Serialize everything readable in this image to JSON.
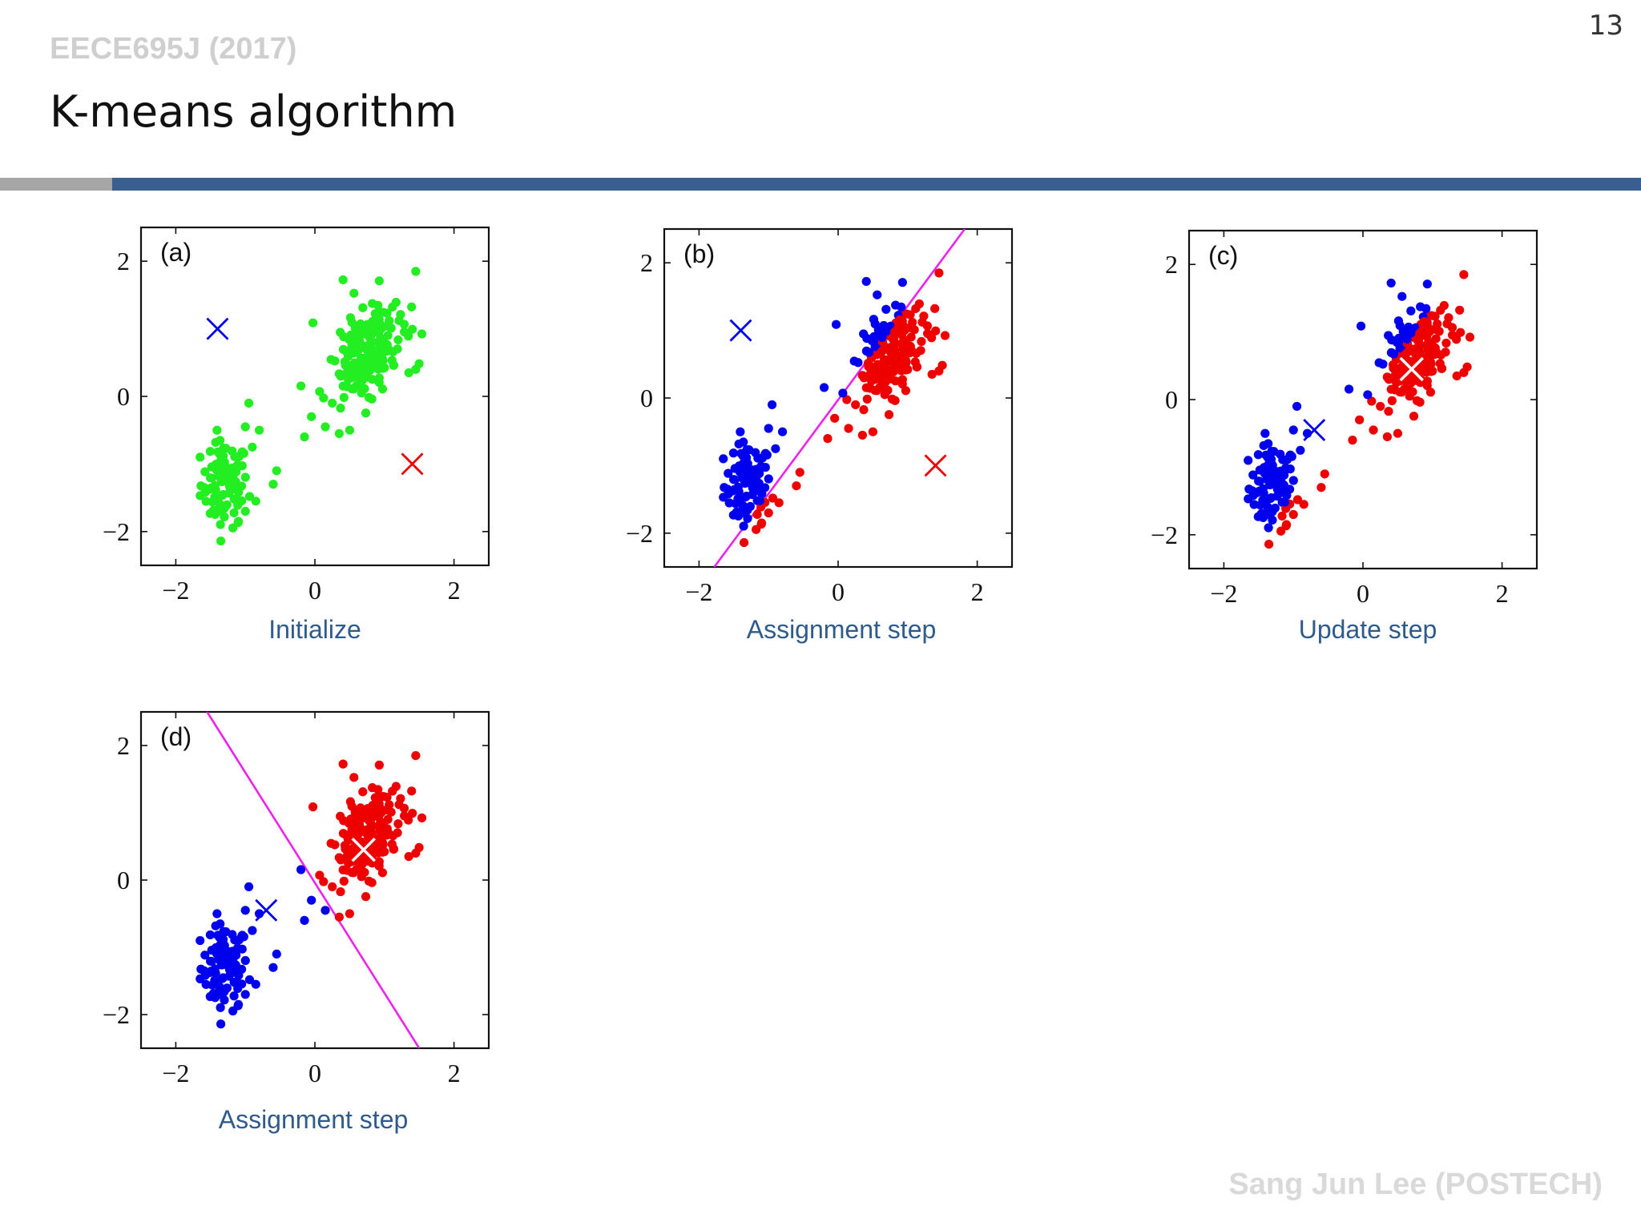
{
  "slide": {
    "page_number": "13",
    "course": "EECE695J (2017)",
    "title": "K-means algorithm",
    "author": "Sang Jun Lee (POSTECH)"
  },
  "colors": {
    "cluster_a": "#0000ee",
    "cluster_b": "#ee0000",
    "unassigned": "#22ee22",
    "boundary": "#ee22ee",
    "rule_gray": "#a6a6a6",
    "rule_blue": "#3a5f8e",
    "caption": "#2f5a8c"
  },
  "chart_data": [
    {
      "type": "scatter",
      "panel": "(a)",
      "caption": "Initialize",
      "xlim": [
        -2.5,
        2.5
      ],
      "ylim": [
        -2.5,
        2.5
      ],
      "xticks": [
        "−2",
        "0",
        "2"
      ],
      "yticks": [
        "−2",
        "0",
        "2"
      ],
      "points": "all-green",
      "centers": [
        {
          "x": -1.4,
          "y": 1.0,
          "color": "blue"
        },
        {
          "x": 1.4,
          "y": -1.0,
          "color": "red"
        }
      ],
      "boundary": null
    },
    {
      "type": "scatter",
      "panel": "(b)",
      "caption": "Assignment step",
      "xlim": [
        -2.5,
        2.5
      ],
      "ylim": [
        -2.5,
        2.5
      ],
      "xticks": [
        "−2",
        "0",
        "2"
      ],
      "yticks": [
        "−2",
        "0",
        "2"
      ],
      "points": "split-initial",
      "centers": [
        {
          "x": -1.4,
          "y": 1.0,
          "color": "blue"
        },
        {
          "x": 1.4,
          "y": -1.0,
          "color": "red"
        }
      ],
      "boundary": [
        [
          -1.78,
          -2.5
        ],
        [
          1.82,
          2.5
        ]
      ]
    },
    {
      "type": "scatter",
      "panel": "(c)",
      "caption": "Update step",
      "xlim": [
        -2.5,
        2.5
      ],
      "ylim": [
        -2.5,
        2.5
      ],
      "xticks": [
        "−2",
        "0",
        "2"
      ],
      "yticks": [
        "−2",
        "0",
        "2"
      ],
      "points": "split-initial",
      "centers": [
        {
          "x": -0.7,
          "y": -0.45,
          "color": "blue"
        },
        {
          "x": 0.7,
          "y": 0.45,
          "color": "white-on-red"
        }
      ],
      "boundary": null
    },
    {
      "type": "scatter",
      "panel": "(d)",
      "caption": "Assignment step",
      "xlim": [
        -2.5,
        2.5
      ],
      "ylim": [
        -2.5,
        2.5
      ],
      "xticks": [
        "−2",
        "0",
        "2"
      ],
      "yticks": [
        "−2",
        "0",
        "2"
      ],
      "points": "split-updated",
      "centers": [
        {
          "x": -0.7,
          "y": -0.45,
          "color": "blue"
        },
        {
          "x": 0.7,
          "y": 0.45,
          "color": "white-on-red"
        }
      ],
      "boundary": [
        [
          -1.55,
          2.5
        ],
        [
          1.5,
          -2.5
        ]
      ]
    }
  ]
}
